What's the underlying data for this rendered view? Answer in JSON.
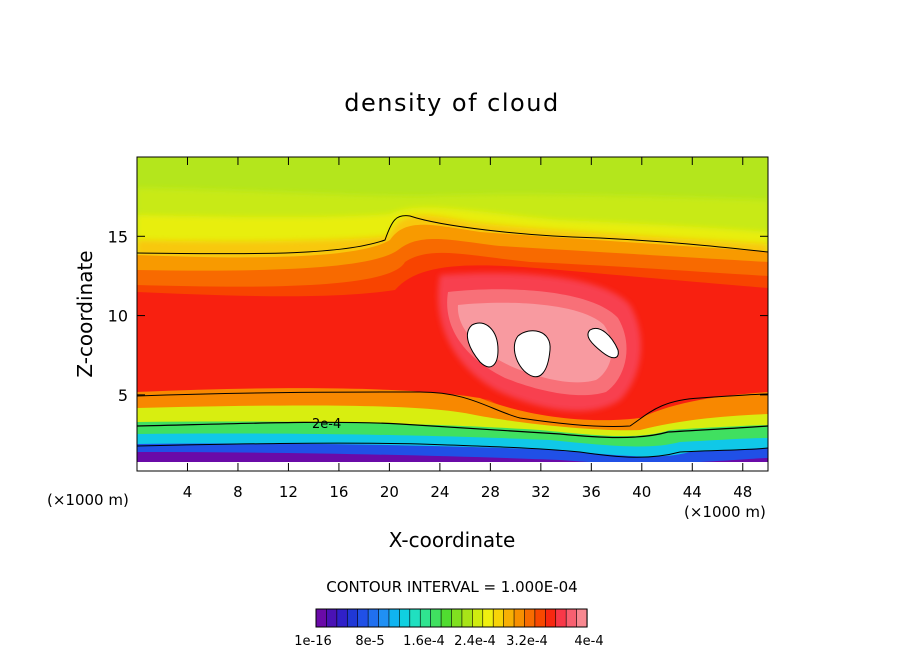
{
  "chart_data": {
    "type": "heatmap",
    "title": "density of cloud",
    "xlabel": "X-coordinate",
    "ylabel": "Z-coordinate",
    "x_unit_left": "(×1000 m)",
    "x_unit_right": "(×1000 m)",
    "xlim": [
      0,
      50
    ],
    "ylim": [
      0.2,
      20
    ],
    "x_ticks": [
      4,
      8,
      12,
      16,
      20,
      24,
      28,
      32,
      36,
      40,
      44,
      48
    ],
    "y_ticks": [
      5,
      10,
      15
    ],
    "contour_interval_text": "CONTOUR INTERVAL = 1.000E-04",
    "contour_label": "2e-4",
    "colorbar": {
      "tick_labels": [
        "1e-16",
        "8e-5",
        "1.6e-4",
        "2.4e-4",
        "3.2e-4",
        "4e-4"
      ],
      "colors": [
        "#6a0aa8",
        "#4a12b5",
        "#3020c8",
        "#2038d6",
        "#2050e6",
        "#2070f0",
        "#2090f4",
        "#10b4f0",
        "#10d0e0",
        "#20e0c0",
        "#30e490",
        "#40e060",
        "#50dc30",
        "#80e020",
        "#a8e418",
        "#d0ec10",
        "#f0f010",
        "#f8d408",
        "#f8b004",
        "#f89000",
        "#f86c00",
        "#f84800",
        "#f82810",
        "#f83848",
        "#f86070",
        "#f88890"
      ]
    },
    "bands": [
      {
        "level": "2e-4",
        "color": "#f8e010"
      },
      {
        "level": "3e-4",
        "color": "#f83020"
      },
      {
        "level": "3.6e-4",
        "color": "#f86070"
      },
      {
        "level": "4e-4",
        "color": "#ffffff"
      }
    ]
  }
}
